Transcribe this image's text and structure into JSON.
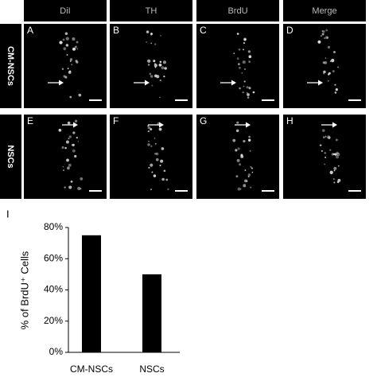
{
  "figure": {
    "columns": [
      "DiI",
      "TH",
      "BrdU",
      "Merge"
    ],
    "rows": [
      "CM-NSCs",
      "NSCs"
    ],
    "panels": [
      "A",
      "B",
      "C",
      "D",
      "E",
      "F",
      "G",
      "H"
    ],
    "chart_label": "I"
  },
  "chart_data": {
    "type": "bar",
    "categories": [
      "CM-NSCs",
      "NSCs"
    ],
    "values": [
      75,
      50
    ],
    "color": "#000000",
    "y_label": "% of BrdU⁺ Cells",
    "ylim": [
      0,
      80
    ],
    "yticks": [
      {
        "value": 0,
        "label": "0%"
      },
      {
        "value": 20,
        "label": "20%"
      },
      {
        "value": 40,
        "label": "40%"
      },
      {
        "value": 60,
        "label": "60%"
      },
      {
        "value": 80,
        "label": "80%"
      }
    ]
  }
}
